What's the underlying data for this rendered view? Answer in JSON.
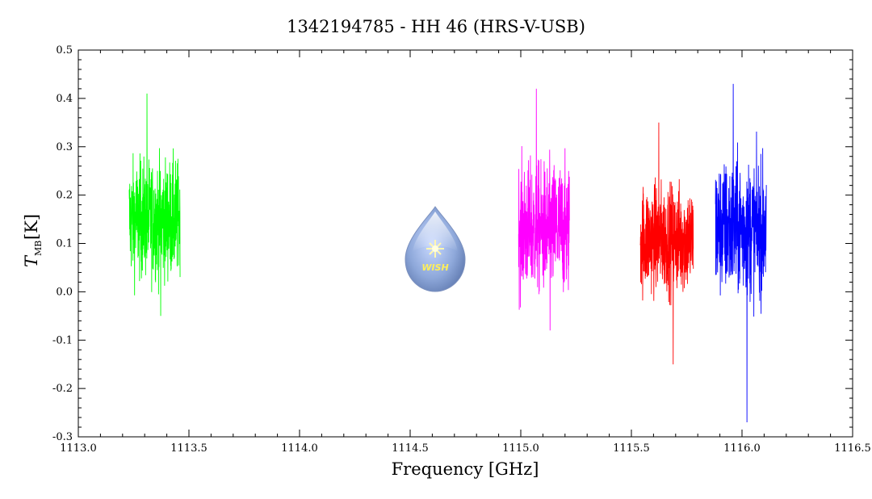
{
  "chart_data": {
    "type": "line",
    "title": "1342194785 - HH 46 (HRS-V-USB)",
    "xlabel": "Frequency [GHz]",
    "ylabel_main": "T",
    "ylabel_sub": "MB",
    "ylabel_unit": "[K]",
    "xlim": [
      1113.0,
      1116.5
    ],
    "ylim": [
      -0.3,
      0.5
    ],
    "x_ticks": [
      "1113.0",
      "1113.5",
      "1114.0",
      "1114.5",
      "1115.0",
      "1115.5",
      "1116.0",
      "1116.5"
    ],
    "x_tick_values": [
      1113.0,
      1113.5,
      1114.0,
      1114.5,
      1115.0,
      1115.5,
      1116.0,
      1116.5
    ],
    "y_ticks": [
      "0.5",
      "0.4",
      "0.3",
      "0.2",
      "0.1",
      "0.0",
      "-0.1",
      "-0.2",
      "-0.3"
    ],
    "y_tick_values": [
      0.5,
      0.4,
      0.3,
      0.2,
      0.1,
      0.0,
      -0.1,
      -0.2,
      -0.3
    ],
    "grid": false,
    "logo": {
      "text": "WISH"
    },
    "series": [
      {
        "color": "#00ff00",
        "x_start": 1113.23,
        "x_end": 1113.46,
        "mean": 0.15,
        "min": -0.05,
        "max": 0.41
      },
      {
        "color": "#ff00ff",
        "x_start": 1114.99,
        "x_end": 1115.22,
        "mean": 0.13,
        "min": -0.08,
        "max": 0.42
      },
      {
        "color": "#ff0000",
        "x_start": 1115.54,
        "x_end": 1115.78,
        "mean": 0.11,
        "min": -0.15,
        "max": 0.35
      },
      {
        "color": "#0000ff",
        "x_start": 1115.88,
        "x_end": 1116.11,
        "mean": 0.13,
        "min": -0.27,
        "max": 0.43
      }
    ]
  }
}
